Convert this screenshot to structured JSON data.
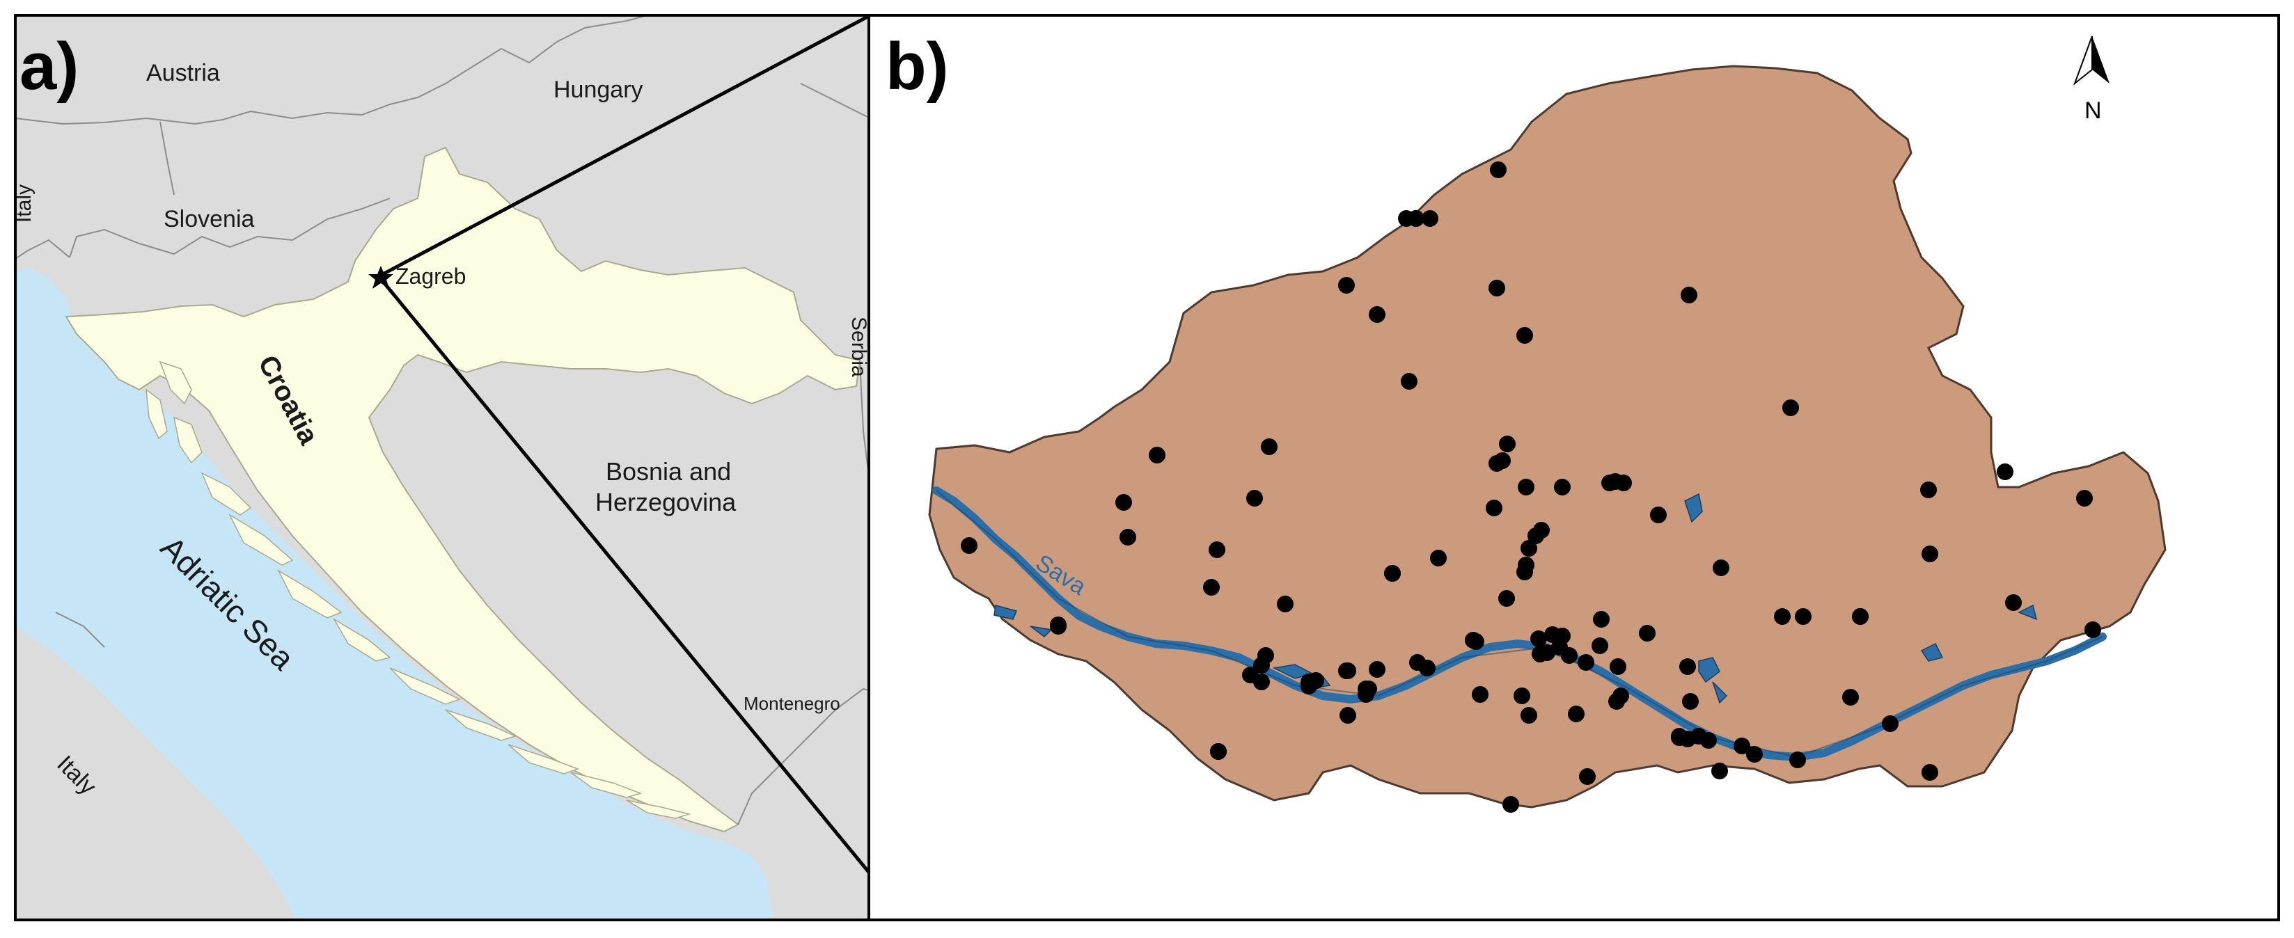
{
  "panel_a": {
    "label": "a)",
    "countries": {
      "austria": "Austria",
      "hungary": "Hungary",
      "italy_north": "Italy",
      "slovenia": "Slovenia",
      "serbia": "Serbia",
      "bosnia_line1": "Bosnia and",
      "bosnia_line2": "Herzegovina",
      "montenegro": "Montenegro",
      "italy_south": "Italy",
      "croatia": "Croatia"
    },
    "sea": "Adriatic Sea",
    "city": "Zagreb"
  },
  "panel_b": {
    "label": "b)",
    "river": "Sava",
    "north_arrow": "N",
    "sample_points_count": 107
  },
  "colors": {
    "land": "#dcdcdc",
    "croatia": "#fdfde3",
    "sea": "#c6e6f8",
    "study_area": "#cc9a7d",
    "river": "#2c6fa8",
    "point": "#000000",
    "border": "#8c8c8c"
  }
}
